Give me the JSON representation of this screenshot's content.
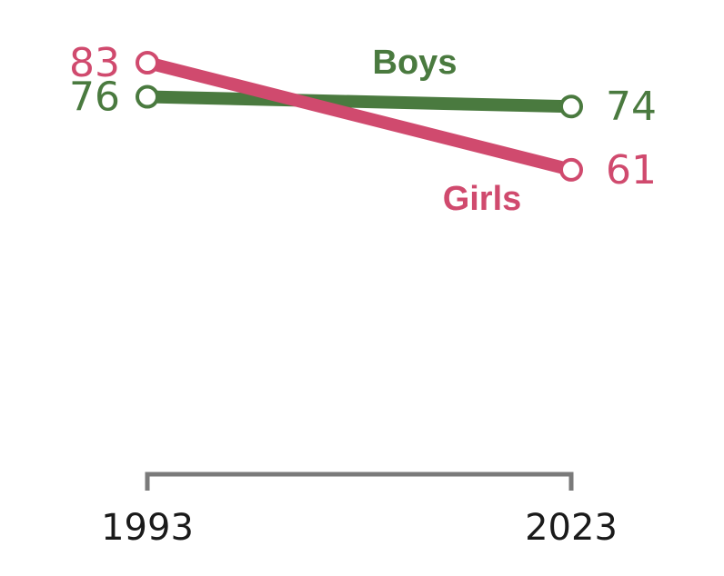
{
  "chart_data": {
    "type": "line",
    "x": [
      "1993",
      "2023"
    ],
    "series": [
      {
        "name": "Boys",
        "values": [
          76,
          74
        ],
        "color": "#4a7a3f"
      },
      {
        "name": "Girls",
        "values": [
          83,
          61
        ],
        "color": "#d04a6e"
      }
    ],
    "axis_color": "#7a7a7a",
    "grid": false,
    "legend": "inline labels"
  }
}
